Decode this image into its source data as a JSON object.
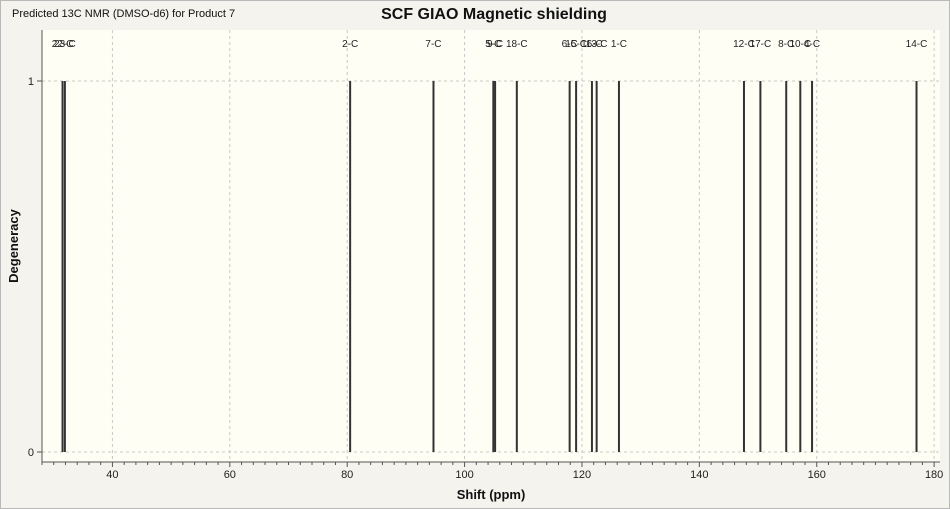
{
  "window": {
    "title": "Predicted 13C NMR (DMSO-d6) for Product 7"
  },
  "chart_data": {
    "type": "stick-spectrum",
    "title": "SCF GIAO Magnetic shielding",
    "xlabel": "Shift (ppm)",
    "ylabel": "Degeneracy",
    "xlim": [
      28,
      181
    ],
    "ylim": [
      0,
      1
    ],
    "x_ticks": [
      40,
      60,
      80,
      100,
      120,
      140,
      160,
      180
    ],
    "y_ticks": [
      0,
      1
    ],
    "y_tick_labels": [
      "0",
      "1"
    ],
    "grid": true,
    "plot_bg": "#fffef5",
    "line_color": "#333333",
    "peaks": [
      {
        "label": "22-C",
        "x": 31.5,
        "y": 1
      },
      {
        "label": "23-C",
        "x": 31.9,
        "y": 1
      },
      {
        "label": "2-C",
        "x": 80.5,
        "y": 1
      },
      {
        "label": "7-C",
        "x": 94.7,
        "y": 1
      },
      {
        "label": "5-C",
        "x": 104.9,
        "y": 1
      },
      {
        "label": "9-C",
        "x": 105.2,
        "y": 1
      },
      {
        "label": "18-C",
        "x": 108.9,
        "y": 1
      },
      {
        "label": "6-C",
        "x": 117.9,
        "y": 1
      },
      {
        "label": "15-C",
        "x": 119.0,
        "y": 1
      },
      {
        "label": "16-C",
        "x": 121.7,
        "y": 1
      },
      {
        "label": "13-C",
        "x": 122.5,
        "y": 1
      },
      {
        "label": "1-C",
        "x": 126.3,
        "y": 1
      },
      {
        "label": "12-C",
        "x": 147.6,
        "y": 1
      },
      {
        "label": "17-C",
        "x": 150.4,
        "y": 1
      },
      {
        "label": "8-C",
        "x": 154.8,
        "y": 1
      },
      {
        "label": "10-C",
        "x": 157.2,
        "y": 1
      },
      {
        "label": "4-C",
        "x": 159.2,
        "y": 1
      },
      {
        "label": "14-C",
        "x": 177.0,
        "y": 1
      }
    ]
  }
}
